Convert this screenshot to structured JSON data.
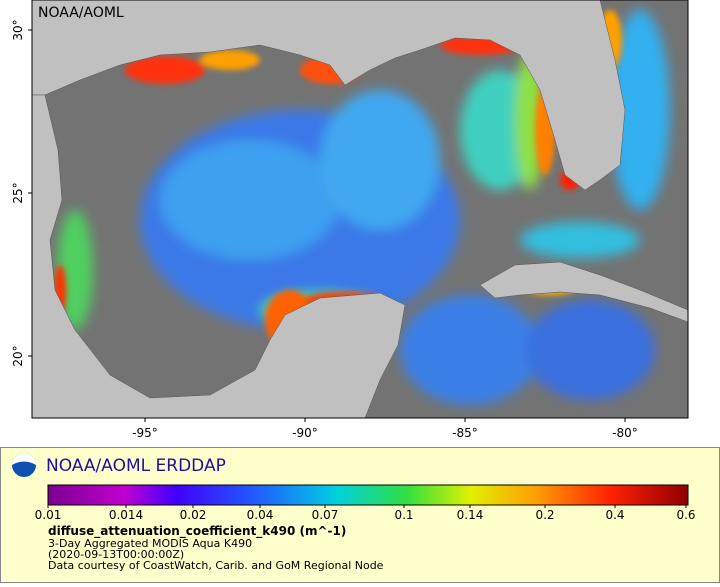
{
  "map": {
    "watermark": "NOAA/AOML",
    "lat_ticks": [
      "30°",
      "25°",
      "20°"
    ],
    "lon_ticks": [
      "-95°",
      "-90°",
      "-85°",
      "-80°"
    ]
  },
  "legend": {
    "title": "NOAA/AOML ERDDAP",
    "colorbar_ticks": [
      "0.01",
      "0.014",
      "0.02",
      "0.04",
      "0.07",
      "0.1",
      "0.14",
      "0.2",
      "0.4",
      "0.6"
    ],
    "variable": "diffuse_attenuation_coefficient_k490 (m^-1)",
    "lines": [
      "3-Day Aggregated MODIS Aqua K490",
      "(2020-09-13T00:00:00Z)",
      "Data courtesy of CoastWatch, Carib. and GoM Regional Node"
    ]
  }
}
